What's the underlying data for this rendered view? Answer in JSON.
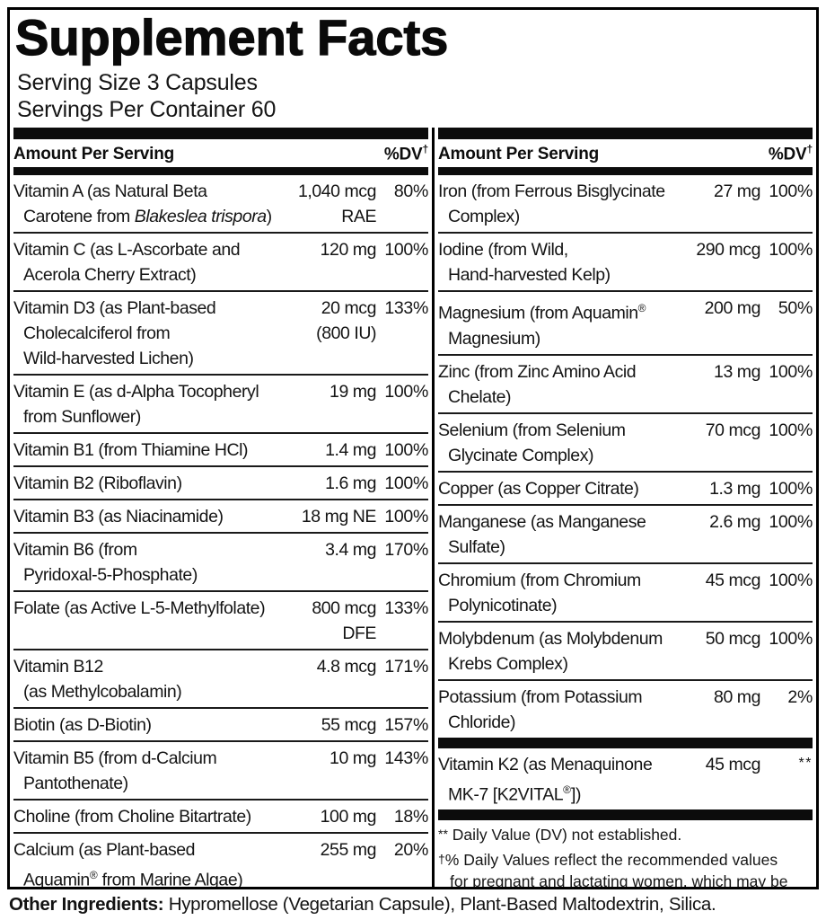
{
  "colors": {
    "ink": "#111111",
    "bar": "#0c0c0c",
    "background": "#ffffff"
  },
  "label": {
    "title": "Supplement Facts",
    "serving_size": "Serving Size 3 Capsules",
    "servings_per_container": "Servings Per Container 60",
    "column_header": "Amount Per Serving",
    "dv_header": "%DV",
    "dv_header_sup": "†"
  },
  "left_column": {
    "rows": [
      {
        "name": [
          [
            {
              "t": "Vitamin A (as Natural Beta"
            }
          ],
          [
            {
              "t": "Carotene from "
            },
            {
              "t": "Blakeslea trispora",
              "i": true
            },
            {
              "t": ")"
            }
          ]
        ],
        "amt": [
          "1,040 mcg",
          "RAE"
        ],
        "dv": "80%"
      },
      {
        "name": [
          [
            {
              "t": "Vitamin C (as L-Ascorbate and"
            }
          ],
          [
            {
              "t": "Acerola Cherry Extract)"
            }
          ]
        ],
        "amt": [
          "120 mg"
        ],
        "dv": "100%"
      },
      {
        "name": [
          [
            {
              "t": "Vitamin D3 (as Plant-based"
            }
          ],
          [
            {
              "t": "Cholecalciferol from"
            }
          ],
          [
            {
              "t": "Wild-harvested Lichen)"
            }
          ]
        ],
        "amt": [
          "20 mcg",
          "(800 IU)"
        ],
        "dv": "133%"
      },
      {
        "name": [
          [
            {
              "t": "Vitamin E (as d-Alpha Tocopheryl"
            }
          ],
          [
            {
              "t": "from Sunflower)"
            }
          ]
        ],
        "amt": [
          "19 mg"
        ],
        "dv": "100%"
      },
      {
        "name": [
          [
            {
              "t": "Vitamin B1 (from Thiamine HCl)"
            }
          ]
        ],
        "amt": [
          "1.4 mg"
        ],
        "dv": "100%"
      },
      {
        "name": [
          [
            {
              "t": "Vitamin B2 (Riboflavin)"
            }
          ]
        ],
        "amt": [
          "1.6 mg"
        ],
        "dv": "100%"
      },
      {
        "name": [
          [
            {
              "t": "Vitamin B3 (as Niacinamide)"
            }
          ]
        ],
        "amt": [
          "18 mg NE"
        ],
        "dv": "100%"
      },
      {
        "name": [
          [
            {
              "t": "Vitamin B6 (from"
            }
          ],
          [
            {
              "t": "Pyridoxal-5-Phosphate)"
            }
          ]
        ],
        "amt": [
          "3.4 mg"
        ],
        "dv": "170%"
      },
      {
        "name": [
          [
            {
              "t": "Folate (as Active L-5-Methylfolate)"
            }
          ]
        ],
        "amt": [
          "800 mcg",
          "DFE"
        ],
        "dv": "133%"
      },
      {
        "name": [
          [
            {
              "t": "Vitamin B12"
            }
          ],
          [
            {
              "t": "(as Methylcobalamin)"
            }
          ]
        ],
        "amt": [
          "4.8 mcg"
        ],
        "dv": "171%"
      },
      {
        "name": [
          [
            {
              "t": "Biotin (as D-Biotin)"
            }
          ]
        ],
        "amt": [
          "55 mcg"
        ],
        "dv": "157%"
      },
      {
        "name": [
          [
            {
              "t": "Vitamin B5 (from d-Calcium"
            }
          ],
          [
            {
              "t": "Pantothenate)"
            }
          ]
        ],
        "amt": [
          "10 mg"
        ],
        "dv": "143%"
      },
      {
        "name": [
          [
            {
              "t": "Choline (from Choline Bitartrate)"
            }
          ]
        ],
        "amt": [
          "100 mg"
        ],
        "dv": "18%"
      },
      {
        "name": [
          [
            {
              "t": "Calcium (as Plant-based"
            }
          ],
          [
            {
              "t": "Aquamin"
            },
            {
              "t": "®",
              "r": true
            },
            {
              "t": " from Marine Algae)"
            }
          ]
        ],
        "amt": [
          "255 mg"
        ],
        "dv": "20%"
      }
    ]
  },
  "right_column": {
    "rows": [
      {
        "name": [
          [
            {
              "t": "Iron (from Ferrous Bisglycinate"
            }
          ],
          [
            {
              "t": "Complex)"
            }
          ]
        ],
        "amt": [
          "27 mg"
        ],
        "dv": "100%"
      },
      {
        "name": [
          [
            {
              "t": "Iodine (from Wild,"
            }
          ],
          [
            {
              "t": "Hand-harvested Kelp)"
            }
          ]
        ],
        "amt": [
          "290 mcg"
        ],
        "dv": "100%"
      },
      {
        "name": [
          [
            {
              "t": "Magnesium (from Aquamin"
            },
            {
              "t": "®",
              "r": true
            }
          ],
          [
            {
              "t": "Magnesium)"
            }
          ]
        ],
        "amt": [
          "200 mg"
        ],
        "dv": "50%"
      },
      {
        "name": [
          [
            {
              "t": "Zinc (from Zinc Amino Acid"
            }
          ],
          [
            {
              "t": "Chelate)"
            }
          ]
        ],
        "amt": [
          "13 mg"
        ],
        "dv": "100%"
      },
      {
        "name": [
          [
            {
              "t": "Selenium (from Selenium"
            }
          ],
          [
            {
              "t": "Glycinate Complex)"
            }
          ]
        ],
        "amt": [
          "70 mcg"
        ],
        "dv": "100%"
      },
      {
        "name": [
          [
            {
              "t": "Copper (as Copper Citrate)"
            }
          ]
        ],
        "amt": [
          "1.3 mg"
        ],
        "dv": "100%"
      },
      {
        "name": [
          [
            {
              "t": "Manganese (as Manganese"
            }
          ],
          [
            {
              "t": "Sulfate)"
            }
          ]
        ],
        "amt": [
          "2.6 mg"
        ],
        "dv": "100%"
      },
      {
        "name": [
          [
            {
              "t": "Chromium (from Chromium"
            }
          ],
          [
            {
              "t": "Polynicotinate)"
            }
          ]
        ],
        "amt": [
          "45 mcg"
        ],
        "dv": "100%"
      },
      {
        "name": [
          [
            {
              "t": "Molybdenum (as Molybdenum"
            }
          ],
          [
            {
              "t": "Krebs Complex)"
            }
          ]
        ],
        "amt": [
          "50 mcg"
        ],
        "dv": "100%"
      },
      {
        "name": [
          [
            {
              "t": "Potassium (from Potassium"
            }
          ],
          [
            {
              "t": "Chloride)"
            }
          ]
        ],
        "amt": [
          "80 mg"
        ],
        "dv": "2%"
      }
    ],
    "k2_rows": [
      {
        "name": [
          [
            {
              "t": "Vitamin K2 (as Menaquinone"
            }
          ],
          [
            {
              "t": "MK-7 [K2VITAL"
            },
            {
              "t": "®",
              "r": true
            },
            {
              "t": "])"
            }
          ]
        ],
        "amt": [
          "45 mcg"
        ],
        "dv": "**",
        "ast": true
      }
    ],
    "footnotes": [
      {
        "sym": "**",
        "text": " Daily Value (DV) not established."
      },
      {
        "sym": "†",
        "text": "% Daily Values reflect the recommended values for pregnant and lactating women, which may be higher than standard daily values."
      }
    ]
  },
  "footer": {
    "other_ingredients_label": "Other Ingredients:",
    "other_ingredients_text": " Hypromellose (Vegetarian Capsule), Plant-Based Maltodextrin, Silica."
  }
}
